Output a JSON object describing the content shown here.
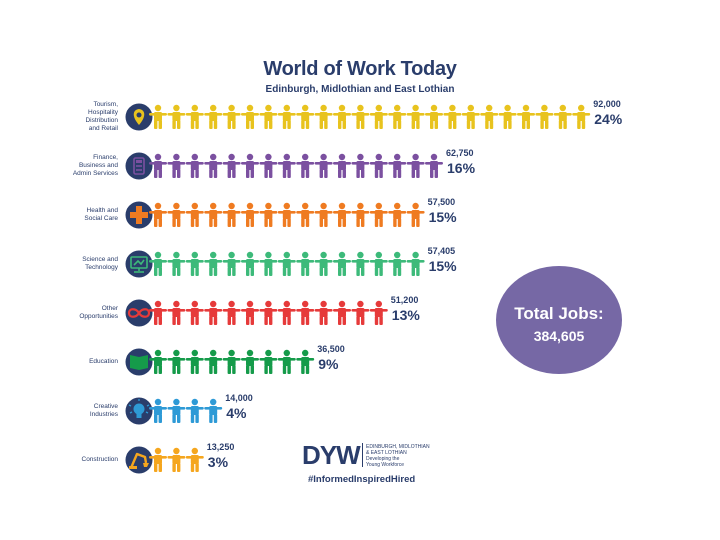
{
  "header": {
    "title": "World of Work Today",
    "subtitle": "Edinburgh, Midlothian and East Lothian"
  },
  "total": {
    "label": "Total Jobs:",
    "value": "384,605"
  },
  "logo": {
    "brand": "DYW",
    "line1": "EDINBURGH, MIDLOTHIAN",
    "line2": "& EAST LOTHIAN",
    "line3": "Developing the",
    "line4": "Young Workforce",
    "hashtag": "#InformedInspiredHired"
  },
  "chart_data": {
    "type": "bar",
    "title": "World of Work Today",
    "subtitle": "Edinburgh, Midlothian and East Lothian",
    "categories": [
      "Tourism, Hospitality Distribution and Retail",
      "Finance, Business and Admin Services",
      "Health and Social Care",
      "Science and Technology",
      "Other Opportunities",
      "Education",
      "Creative Industries",
      "Construction"
    ],
    "rows": [
      {
        "label_lines": [
          "Tourism,",
          "Hospitality",
          "Distribution",
          "and Retail"
        ],
        "value": 92000,
        "value_label": "92,000",
        "percent": "24%",
        "people": 24,
        "color": "#e8c31e",
        "icon": "map-pin-icon"
      },
      {
        "label_lines": [
          "Finance,",
          "Business and",
          "Admin Services"
        ],
        "value": 62750,
        "value_label": "62,750",
        "percent": "16%",
        "people": 16,
        "color": "#7b50a0",
        "icon": "calculator-icon"
      },
      {
        "label_lines": [
          "Health and",
          "Social Care"
        ],
        "value": 57500,
        "value_label": "57,500",
        "percent": "15%",
        "people": 15,
        "color": "#ef7b21",
        "icon": "medical-cross-icon"
      },
      {
        "label_lines": [
          "Science and",
          "Technology"
        ],
        "value": 57405,
        "value_label": "57,405",
        "percent": "15%",
        "people": 15,
        "color": "#3dba7a",
        "icon": "monitor-icon"
      },
      {
        "label_lines": [
          "Other",
          "Opportunities"
        ],
        "value": 51200,
        "value_label": "51,200",
        "percent": "13%",
        "people": 13,
        "color": "#e63a3a",
        "icon": "infinity-icon"
      },
      {
        "label_lines": [
          "Education"
        ],
        "value": 36500,
        "value_label": "36,500",
        "percent": "9%",
        "people": 9,
        "color": "#159b4a",
        "icon": "book-icon"
      },
      {
        "label_lines": [
          "Creative",
          "Industries"
        ],
        "value": 14000,
        "value_label": "14,000",
        "percent": "4%",
        "people": 4,
        "color": "#2e9ad6",
        "icon": "lightbulb-icon"
      },
      {
        "label_lines": [
          "Construction"
        ],
        "value": 13250,
        "value_label": "13,250",
        "percent": "3%",
        "people": 3,
        "color": "#f5a61e",
        "icon": "crane-icon"
      }
    ],
    "icon_circle_color": "#2a3d6b",
    "text_color": "#2a3d6b"
  }
}
